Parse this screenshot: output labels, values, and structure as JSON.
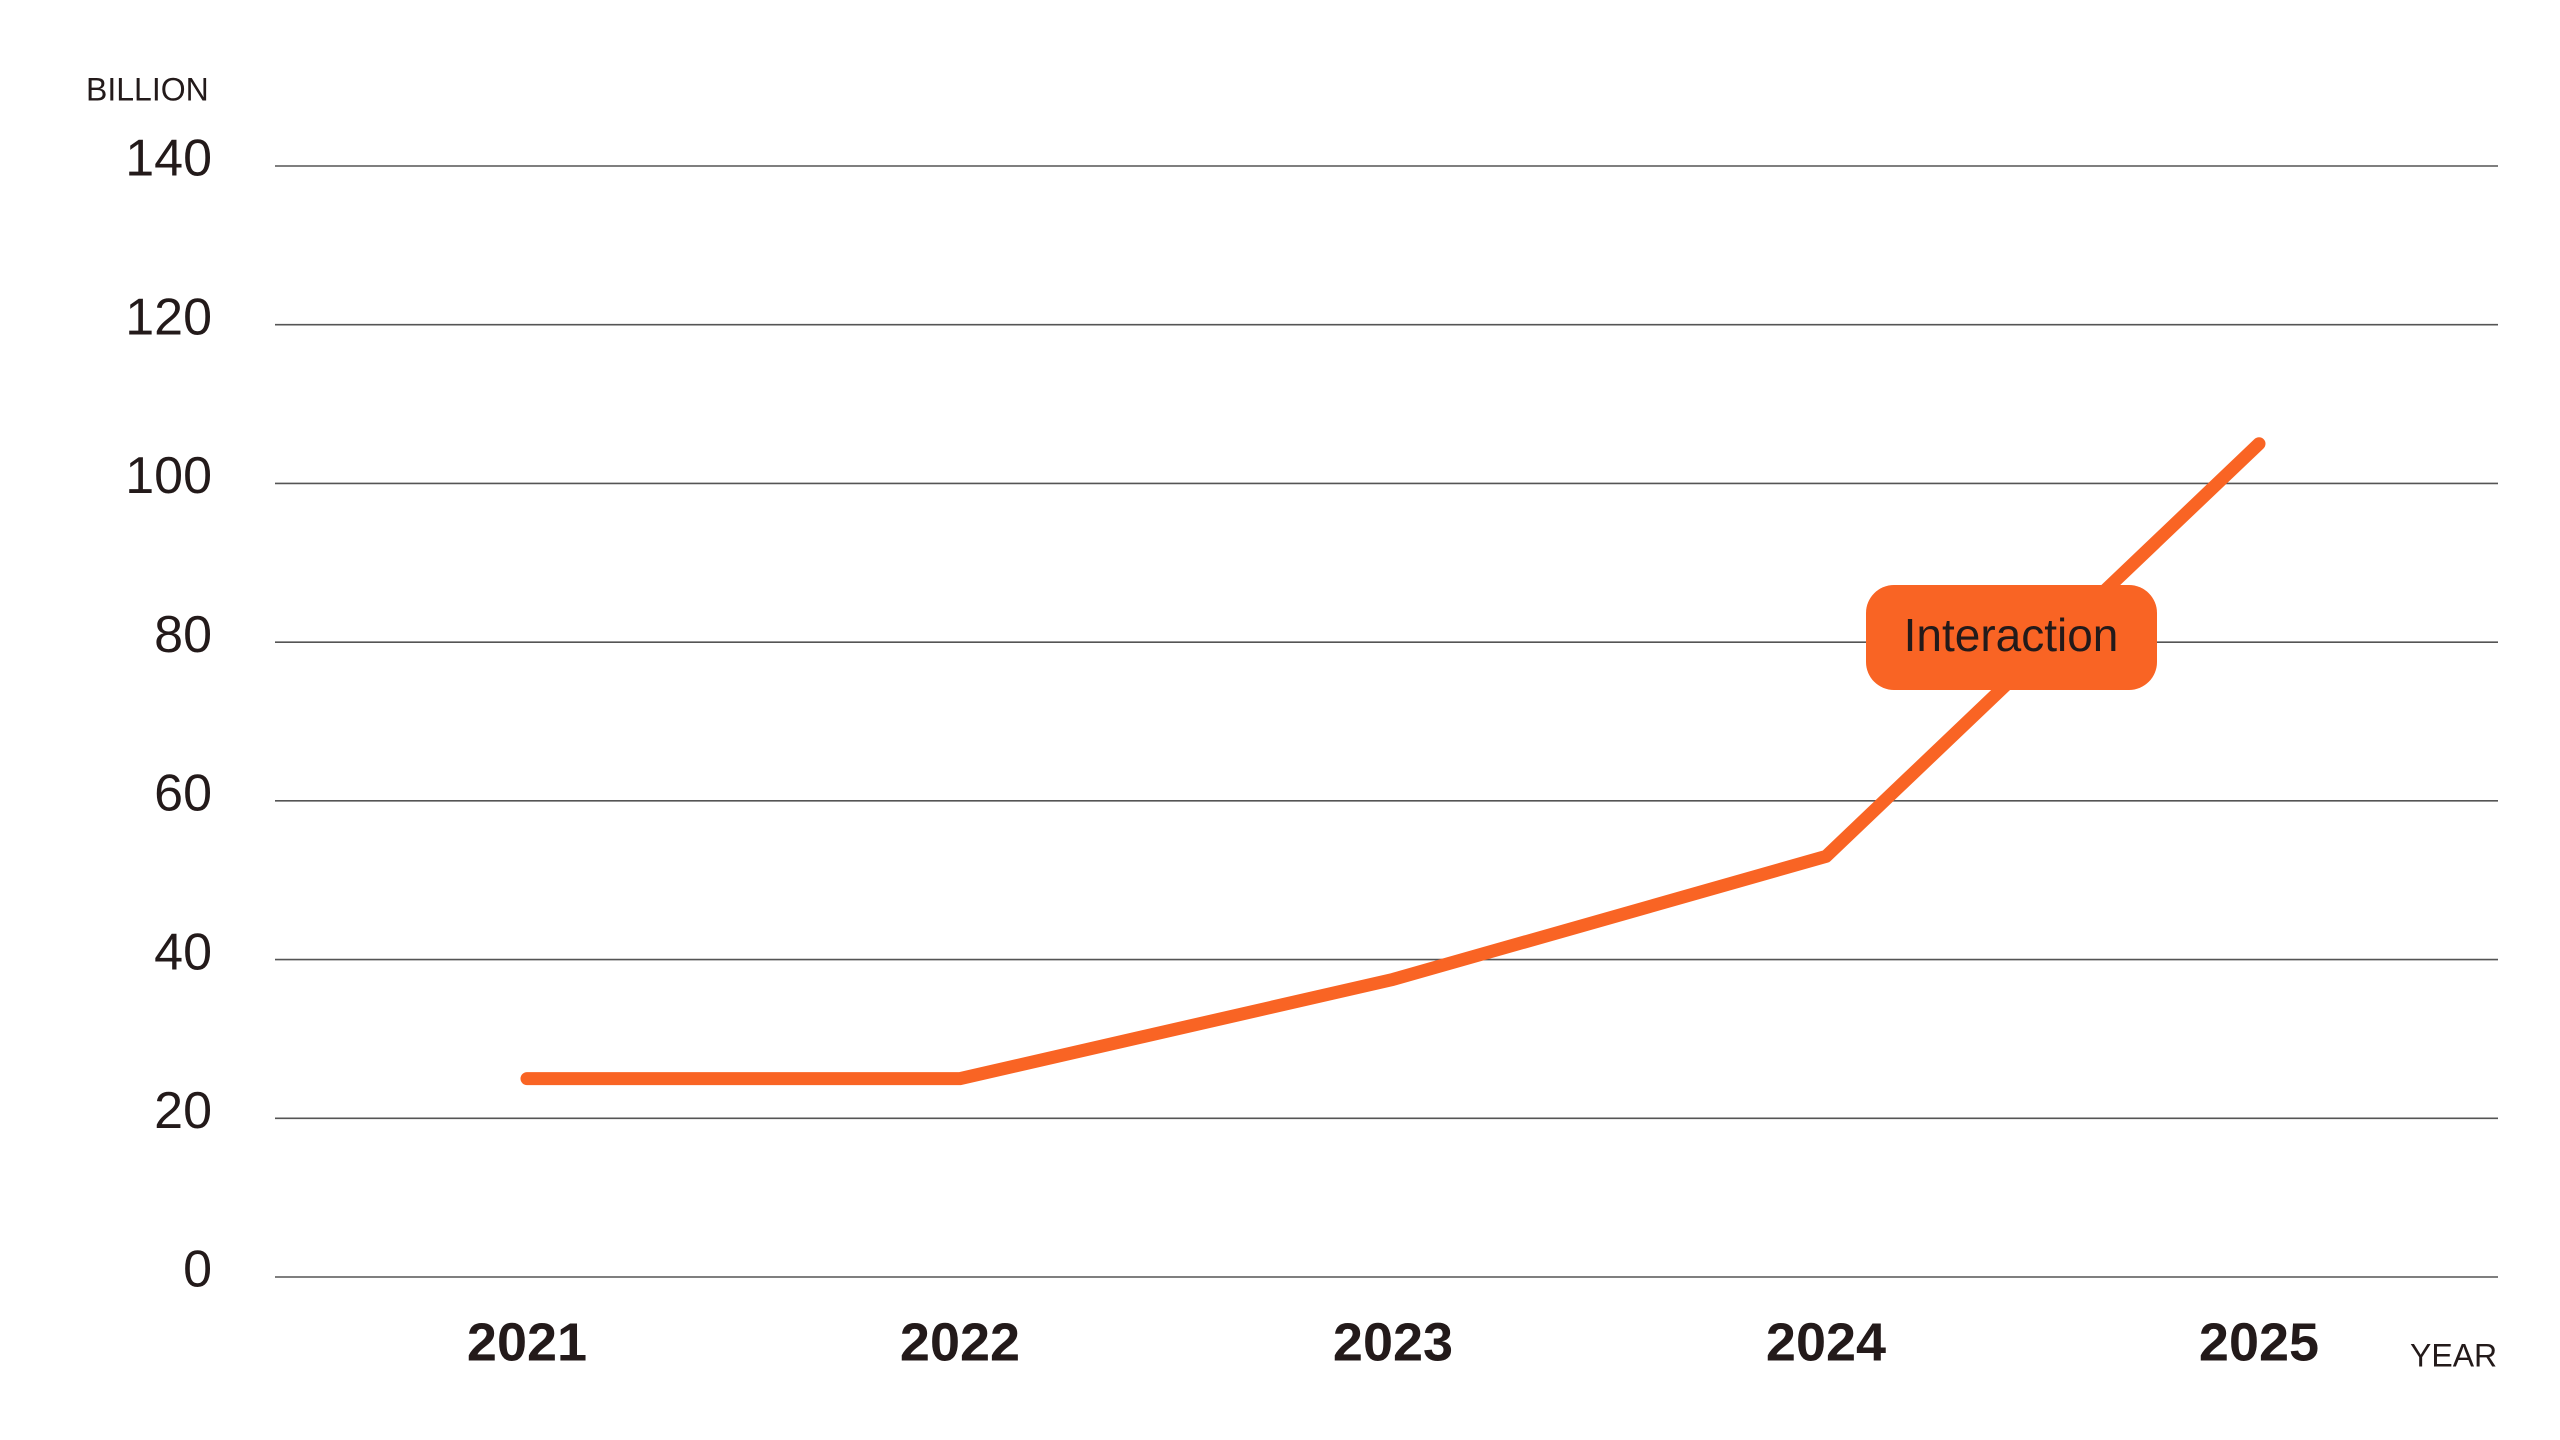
{
  "chart_data": {
    "type": "line",
    "y_label": "BILLION",
    "x_label": "YEAR",
    "annotation": "Interaction",
    "categories": [
      "2021",
      "2022",
      "2023",
      "2024",
      "2025"
    ],
    "values": [
      25,
      25,
      37.5,
      53,
      105
    ],
    "color": "#f96424",
    "ylim": [
      0,
      140
    ],
    "yticks": [
      0,
      20,
      40,
      60,
      80,
      100,
      120,
      140
    ],
    "grid": true
  }
}
